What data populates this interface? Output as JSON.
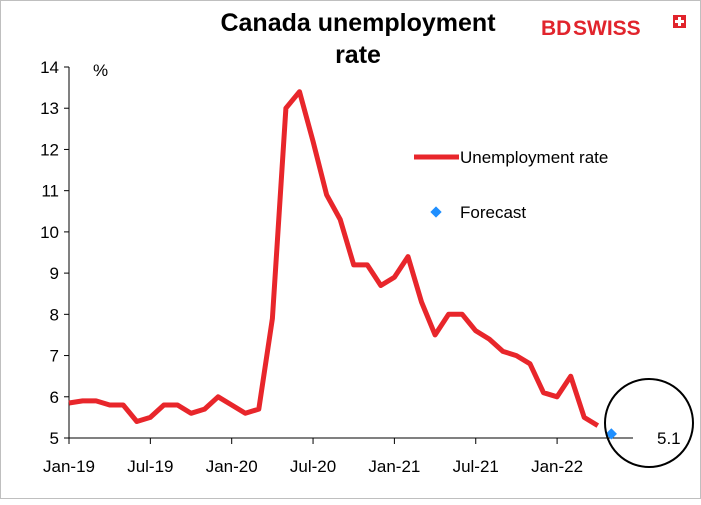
{
  "brand": {
    "logo_text_a": "BD",
    "logo_text_b": "SWISS",
    "color": "#e1242c"
  },
  "chart_data": {
    "type": "line",
    "title_line1": "Canada unemployment",
    "title_line2": "rate",
    "ylabel": "%",
    "ylim": [
      5,
      14
    ],
    "yticks": [
      5,
      6,
      7,
      8,
      9,
      10,
      11,
      12,
      13,
      14
    ],
    "xtick_labels": [
      "Jan-19",
      "Jul-19",
      "Jan-20",
      "Jul-20",
      "Jan-21",
      "Jul-21",
      "Jan-22"
    ],
    "xtick_month_index": [
      0,
      6,
      12,
      18,
      24,
      30,
      36
    ],
    "grid": false,
    "legend_position": "right",
    "series": [
      {
        "name": "Unemployment rate",
        "type": "line",
        "color": "#e8262b",
        "x": [
          "Jan-19",
          "Feb-19",
          "Mar-19",
          "Apr-19",
          "May-19",
          "Jun-19",
          "Jul-19",
          "Aug-19",
          "Sep-19",
          "Oct-19",
          "Nov-19",
          "Dec-19",
          "Jan-20",
          "Feb-20",
          "Mar-20",
          "Apr-20",
          "May-20",
          "Jun-20",
          "Jul-20",
          "Aug-20",
          "Sep-20",
          "Oct-20",
          "Nov-20",
          "Dec-20",
          "Jan-21",
          "Feb-21",
          "Mar-21",
          "Apr-21",
          "May-21",
          "Jun-21",
          "Jul-21",
          "Aug-21",
          "Sep-21",
          "Oct-21",
          "Nov-21",
          "Dec-21",
          "Jan-22",
          "Feb-22",
          "Mar-22",
          "Apr-22"
        ],
        "values": [
          5.85,
          5.9,
          5.9,
          5.8,
          5.8,
          5.4,
          5.5,
          5.8,
          5.8,
          5.6,
          5.7,
          6.0,
          5.8,
          5.6,
          5.7,
          7.9,
          13.0,
          13.4,
          12.2,
          10.9,
          10.3,
          9.2,
          9.2,
          8.7,
          8.9,
          9.4,
          8.3,
          7.5,
          8.0,
          8.0,
          7.6,
          7.4,
          7.1,
          7.0,
          6.8,
          6.1,
          6.0,
          6.5,
          5.5,
          5.3
        ]
      },
      {
        "name": "Forecast",
        "type": "scatter",
        "color": "#1f8fff",
        "x": [
          "May-22"
        ],
        "values": [
          5.1
        ]
      }
    ],
    "annotations": [
      {
        "text": "5.1",
        "x": "May-22",
        "y": 5.1
      }
    ]
  }
}
